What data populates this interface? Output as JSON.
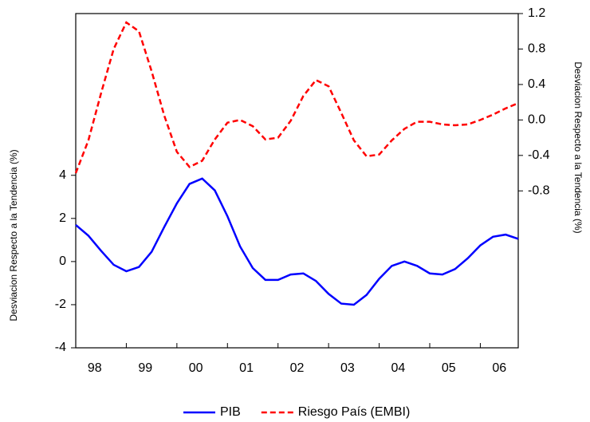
{
  "chart_data": {
    "type": "line",
    "y_label": "Desviacion Respecto a la Tendencia (%)",
    "y2_label": "Desviacion Respecto a la Tendencia (%)",
    "x": [
      1998,
      1998.25,
      1998.5,
      1998.75,
      1999,
      1999.25,
      1999.5,
      1999.75,
      2000,
      2000.25,
      2000.5,
      2000.75,
      2001,
      2001.25,
      2001.5,
      2001.75,
      2002,
      2002.25,
      2002.5,
      2002.75,
      2003,
      2003.25,
      2003.5,
      2003.75,
      2004,
      2004.25,
      2004.5,
      2004.75,
      2005,
      2005.25,
      2005.5,
      2005.75,
      2006,
      2006.25,
      2006.5,
      2006.75
    ],
    "xlim": [
      1998,
      2006.75
    ],
    "xticks": [
      {
        "value": 1998.375,
        "label": "98"
      },
      {
        "value": 1999.375,
        "label": "99"
      },
      {
        "value": 2000.375,
        "label": "00"
      },
      {
        "value": 2001.375,
        "label": "01"
      },
      {
        "value": 2002.375,
        "label": "02"
      },
      {
        "value": 2003.375,
        "label": "03"
      },
      {
        "value": 2004.375,
        "label": "04"
      },
      {
        "value": 2005.375,
        "label": "05"
      },
      {
        "value": 2006.375,
        "label": "06"
      }
    ],
    "ylim": [
      -4,
      11.5
    ],
    "yticks": [
      -4,
      -2,
      0,
      2,
      4
    ],
    "y2lim": [
      -2.57,
      1.2
    ],
    "y2ticks": [
      {
        "value": -0.8,
        "label": "-0.8"
      },
      -0.4,
      {
        "value": 0,
        "label": "0.0"
      },
      0.4,
      0.8,
      1.2
    ],
    "legend": "bottom",
    "series": [
      {
        "name": "PIB",
        "color": "#0000ff",
        "dash": "solid",
        "values": [
          1.7,
          1.2,
          0.5,
          -0.15,
          -0.45,
          -0.25,
          0.45,
          1.6,
          2.7,
          3.6,
          3.85,
          3.3,
          2.1,
          0.7,
          -0.3,
          -0.85,
          -0.85,
          -0.6,
          -0.55,
          -0.9,
          -1.5,
          -1.95,
          -2.0,
          -1.55,
          -0.8,
          -0.2,
          0.0,
          -0.2,
          -0.55,
          -0.6,
          -0.35,
          0.15,
          0.75,
          1.15,
          1.25,
          1.05
        ]
      },
      {
        "name": "Riesgo País (EMBI)",
        "color": "#ff0000",
        "dash": "dashed",
        "axis": "y2",
        "values": [
          -0.6,
          -0.23,
          0.3,
          0.8,
          1.1,
          1.0,
          0.55,
          0.05,
          -0.36,
          -0.53,
          -0.46,
          -0.22,
          -0.03,
          0.0,
          -0.07,
          -0.22,
          -0.2,
          -0.01,
          0.27,
          0.45,
          0.38,
          0.08,
          -0.23,
          -0.41,
          -0.39,
          -0.23,
          -0.1,
          -0.02,
          -0.02,
          -0.05,
          -0.06,
          -0.05,
          0.0,
          0.06,
          0.13,
          0.19
        ]
      }
    ]
  }
}
